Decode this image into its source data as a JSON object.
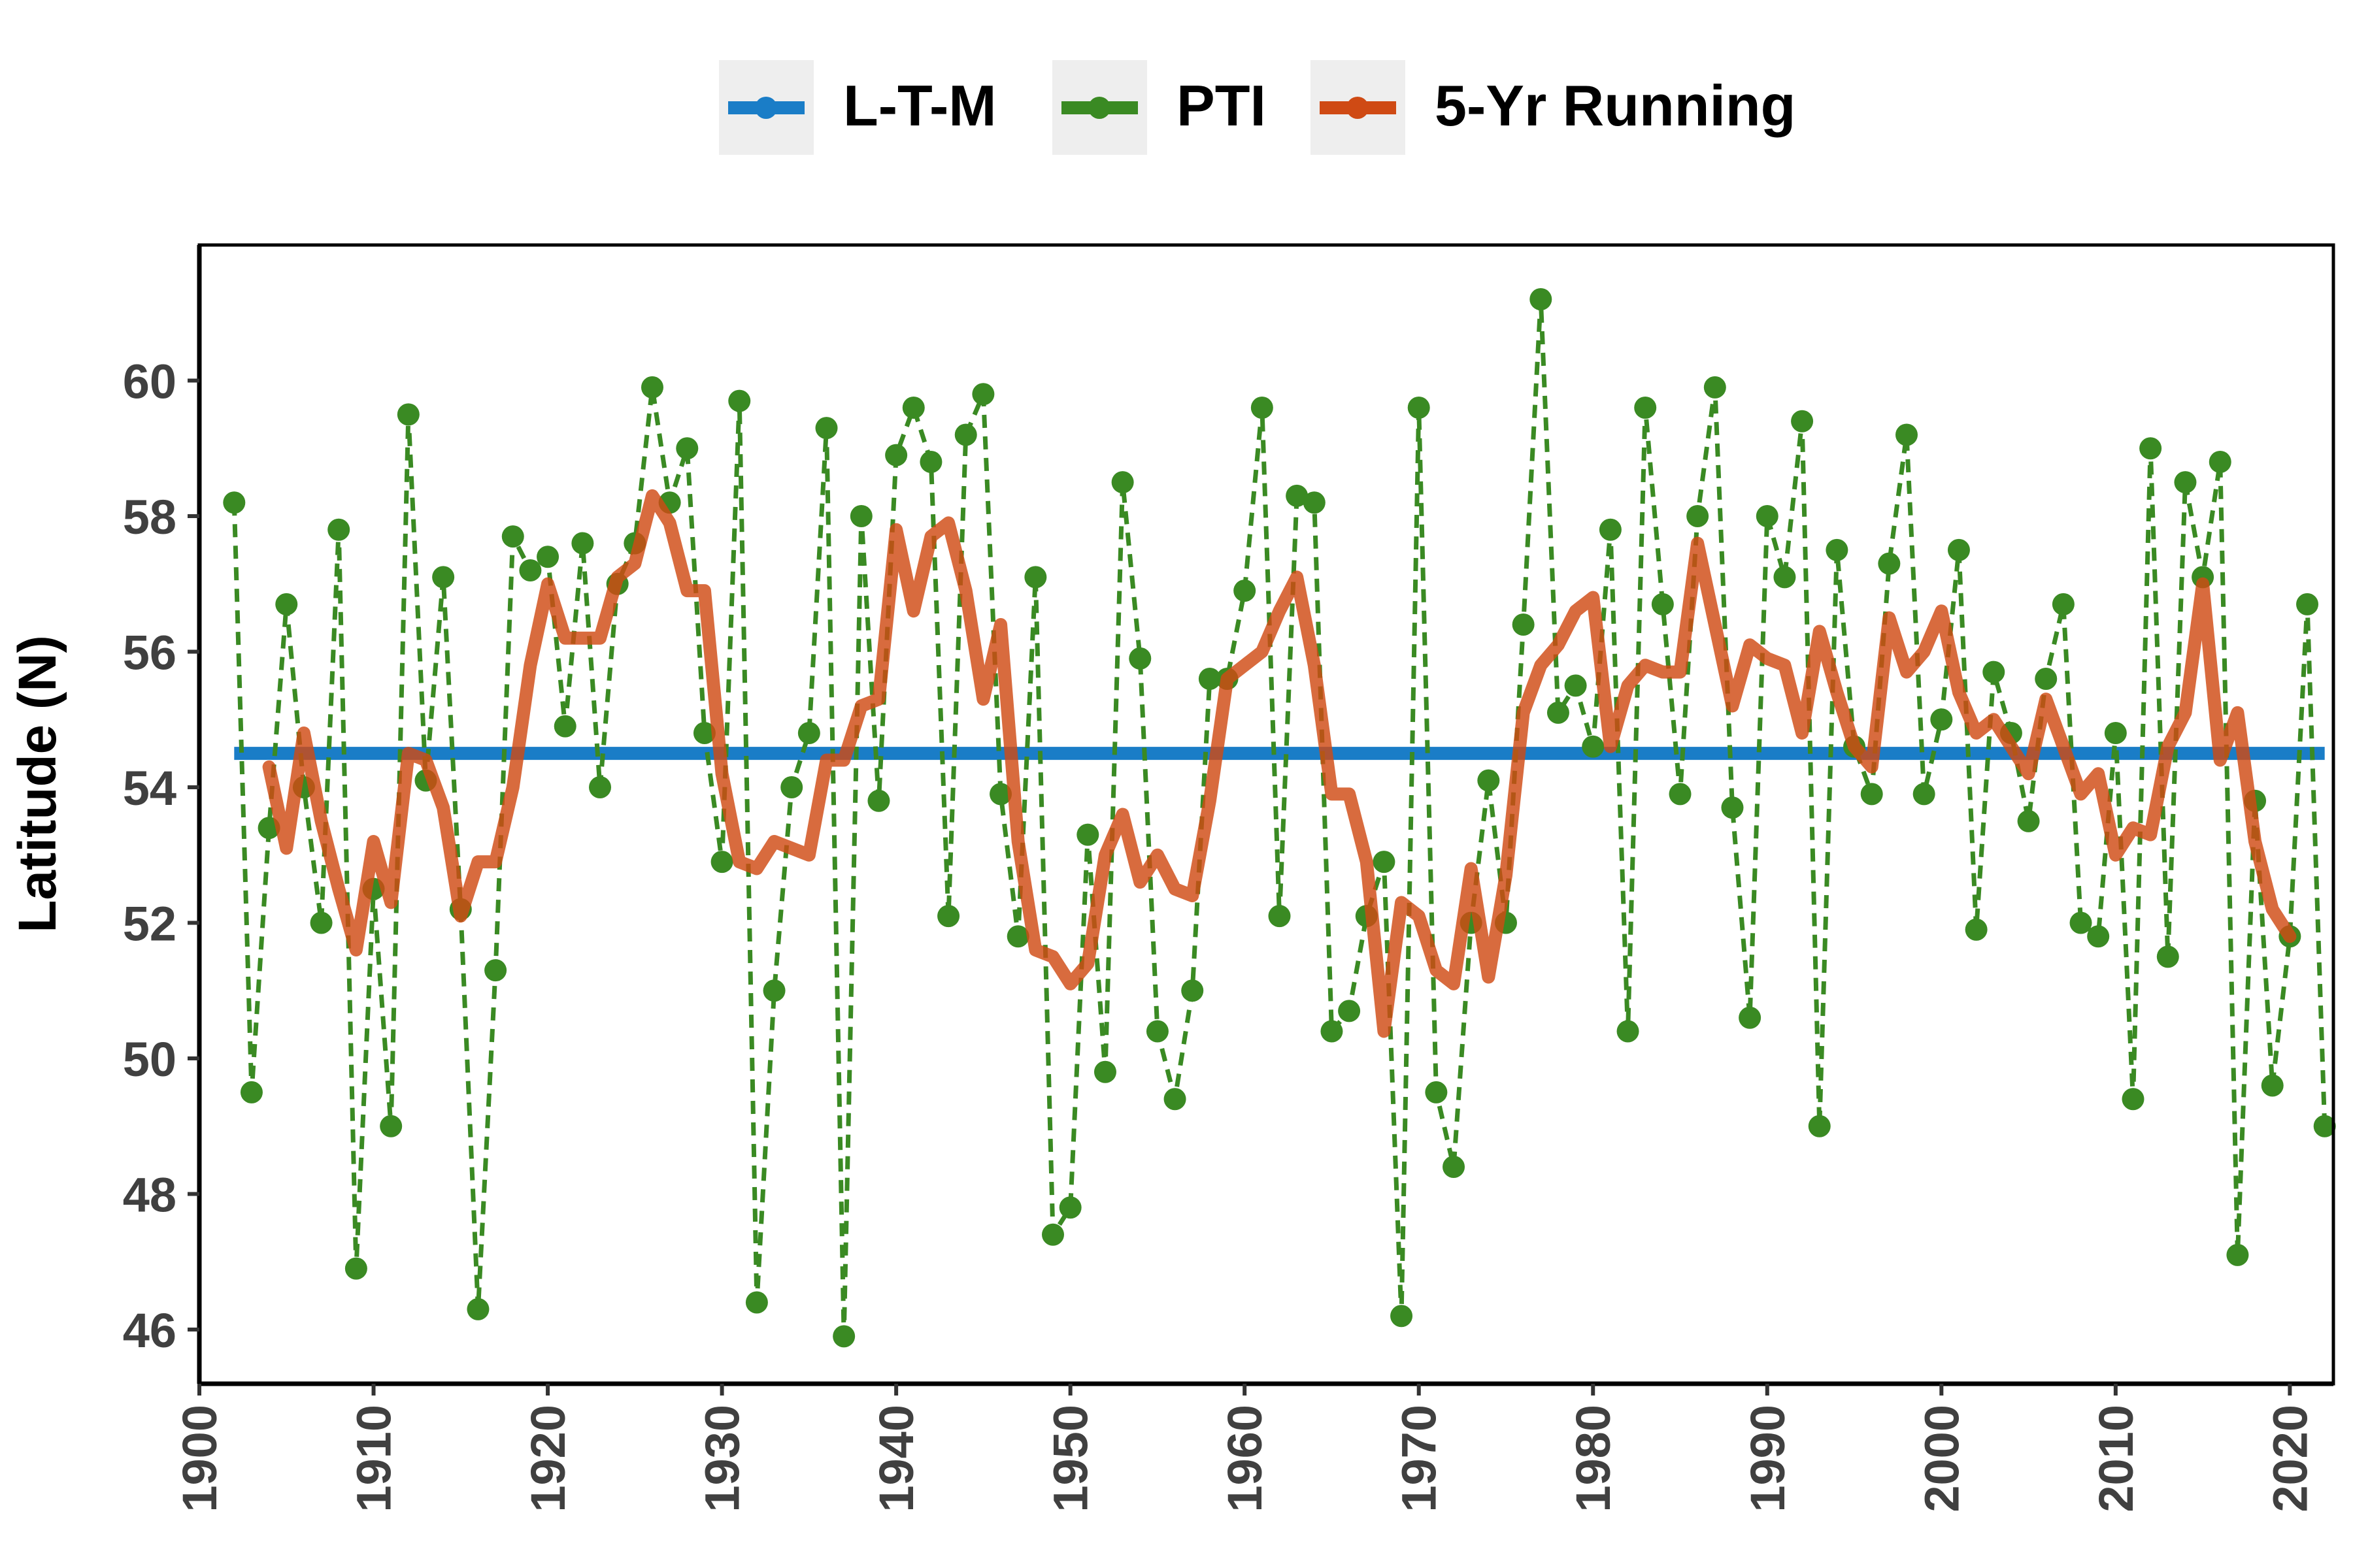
{
  "legend": {
    "items": [
      {
        "key": "ltm",
        "label": "L-T-M",
        "color": "#1a7dc7"
      },
      {
        "key": "pti",
        "label": "PTI",
        "color": "#3a8a23"
      },
      {
        "key": "running",
        "label": "5-Yr Running",
        "color": "#cf4a14"
      }
    ]
  },
  "chart_data": {
    "type": "line",
    "title": "",
    "xlabel": "",
    "ylabel": "Latitude (N)",
    "xlim": [
      1900,
      2022.5
    ],
    "ylim": [
      45.2,
      62.0
    ],
    "grid": false,
    "legend_position": "top",
    "x_ticks": [
      1900,
      1910,
      1920,
      1930,
      1940,
      1950,
      1960,
      1970,
      1980,
      1990,
      2000,
      2010,
      2020
    ],
    "y_ticks": [
      46,
      48,
      50,
      52,
      54,
      56,
      58,
      60
    ],
    "series": [
      {
        "name": "L-T-M",
        "color": "#1a7dc7",
        "style": "solid",
        "x": [
          1902,
          2022
        ],
        "y": [
          54.5,
          54.5
        ]
      },
      {
        "name": "PTI",
        "color": "#3a8a23",
        "style": "dashed-markers",
        "x": [
          1902,
          1903,
          1904,
          1905,
          1906,
          1907,
          1908,
          1909,
          1910,
          1911,
          1912,
          1913,
          1914,
          1915,
          1916,
          1917,
          1918,
          1919,
          1920,
          1921,
          1922,
          1923,
          1924,
          1925,
          1926,
          1927,
          1928,
          1929,
          1930,
          1931,
          1932,
          1933,
          1934,
          1935,
          1936,
          1937,
          1938,
          1939,
          1940,
          1941,
          1942,
          1943,
          1944,
          1945,
          1946,
          1947,
          1948,
          1949,
          1950,
          1951,
          1952,
          1953,
          1954,
          1955,
          1956,
          1957,
          1958,
          1959,
          1960,
          1961,
          1962,
          1963,
          1964,
          1965,
          1966,
          1967,
          1968,
          1969,
          1970,
          1971,
          1972,
          1973,
          1974,
          1975,
          1976,
          1977,
          1978,
          1979,
          1980,
          1981,
          1982,
          1983,
          1984,
          1985,
          1986,
          1987,
          1988,
          1989,
          1990,
          1991,
          1992,
          1993,
          1994,
          1995,
          1996,
          1997,
          1998,
          1999,
          2000,
          2001,
          2002,
          2003,
          2004,
          2005,
          2006,
          2007,
          2008,
          2009,
          2010,
          2011,
          2012,
          2013,
          2014,
          2015,
          2016,
          2017,
          2018,
          2019,
          2020,
          2021,
          2022
        ],
        "y": [
          58.2,
          49.5,
          53.4,
          56.7,
          54.0,
          52.0,
          57.8,
          46.9,
          52.5,
          49.0,
          59.5,
          54.1,
          57.1,
          52.2,
          46.3,
          51.3,
          57.7,
          57.2,
          57.4,
          54.9,
          57.6,
          54.0,
          57.0,
          57.6,
          59.9,
          58.2,
          59.0,
          54.8,
          52.9,
          59.7,
          46.4,
          51.0,
          54.0,
          54.8,
          59.3,
          45.9,
          58.0,
          53.8,
          58.9,
          59.6,
          58.8,
          52.1,
          59.2,
          59.8,
          53.9,
          51.8,
          57.1,
          47.4,
          47.8,
          53.3,
          49.8,
          58.5,
          55.9,
          50.4,
          49.4,
          51.0,
          55.6,
          55.6,
          56.9,
          59.6,
          52.1,
          58.3,
          58.2,
          50.4,
          50.7,
          52.1,
          52.9,
          46.2,
          59.6,
          49.5,
          48.4,
          52.0,
          54.1,
          52.0,
          56.4,
          61.2,
          55.1,
          55.5,
          54.6,
          57.8,
          50.4,
          59.6,
          56.7,
          53.9,
          58.0,
          59.9,
          53.7,
          50.6,
          58.0,
          57.1,
          59.4,
          49.0,
          57.5,
          54.6,
          53.9,
          57.3,
          59.2,
          53.9,
          55.0,
          57.5,
          51.9,
          55.7,
          54.8,
          53.5,
          55.6,
          56.7,
          52.0,
          51.8,
          54.8,
          49.4,
          59.0,
          51.5,
          58.5,
          57.1,
          58.8,
          47.1,
          53.8,
          49.6,
          51.8,
          56.7,
          49.0
        ]
      },
      {
        "name": "5-Yr Running",
        "color": "#cf4a14",
        "style": "solid",
        "x": [
          1904,
          1905,
          1906,
          1907,
          1908,
          1909,
          1910,
          1911,
          1912,
          1913,
          1914,
          1915,
          1916,
          1917,
          1918,
          1919,
          1920,
          1921,
          1922,
          1923,
          1924,
          1925,
          1926,
          1927,
          1928,
          1929,
          1930,
          1931,
          1932,
          1933,
          1934,
          1935,
          1936,
          1937,
          1938,
          1939,
          1940,
          1941,
          1942,
          1943,
          1944,
          1945,
          1946,
          1947,
          1948,
          1949,
          1950,
          1951,
          1952,
          1953,
          1954,
          1955,
          1956,
          1957,
          1958,
          1959,
          1960,
          1961,
          1962,
          1963,
          1964,
          1965,
          1966,
          1967,
          1968,
          1969,
          1970,
          1971,
          1972,
          1973,
          1974,
          1975,
          1976,
          1977,
          1978,
          1979,
          1980,
          1981,
          1982,
          1983,
          1984,
          1985,
          1986,
          1987,
          1988,
          1989,
          1990,
          1991,
          1992,
          1993,
          1994,
          1995,
          1996,
          1997,
          1998,
          1999,
          2000,
          2001,
          2002,
          2003,
          2004,
          2005,
          2006,
          2007,
          2008,
          2009,
          2010,
          2011,
          2012,
          2013,
          2014,
          2015,
          2016,
          2017,
          2018,
          2019,
          2020
        ],
        "y": [
          54.3,
          53.1,
          54.8,
          53.5,
          52.5,
          51.6,
          53.2,
          52.3,
          54.5,
          54.4,
          53.7,
          52.1,
          52.9,
          52.9,
          54.0,
          55.8,
          57.0,
          56.2,
          56.2,
          56.2,
          57.1,
          57.3,
          58.3,
          57.9,
          56.9,
          56.9,
          54.2,
          52.9,
          52.8,
          53.2,
          53.1,
          53.0,
          54.4,
          54.4,
          55.2,
          55.3,
          57.8,
          56.6,
          57.7,
          57.9,
          56.9,
          55.3,
          56.4,
          53.2,
          51.6,
          51.5,
          51.1,
          51.4,
          53.0,
          53.6,
          52.6,
          53.0,
          52.5,
          52.4,
          53.8,
          55.6,
          55.8,
          56.0,
          56.6,
          57.1,
          55.8,
          53.9,
          53.9,
          52.9,
          50.4,
          52.3,
          52.1,
          51.3,
          51.1,
          52.8,
          51.2,
          52.7,
          55.1,
          55.8,
          56.1,
          56.6,
          56.8,
          54.6,
          55.5,
          55.8,
          55.7,
          55.7,
          57.6,
          56.4,
          55.2,
          56.1,
          55.9,
          55.8,
          54.8,
          56.3,
          55.4,
          54.6,
          54.3,
          56.5,
          55.7,
          56.0,
          56.6,
          55.4,
          54.8,
          55.0,
          54.6,
          54.2,
          55.3,
          54.6,
          53.9,
          54.2,
          53.0,
          53.4,
          53.3,
          54.6,
          55.1,
          57.0,
          54.4,
          55.1,
          53.2,
          52.2,
          51.8
        ]
      }
    ]
  }
}
